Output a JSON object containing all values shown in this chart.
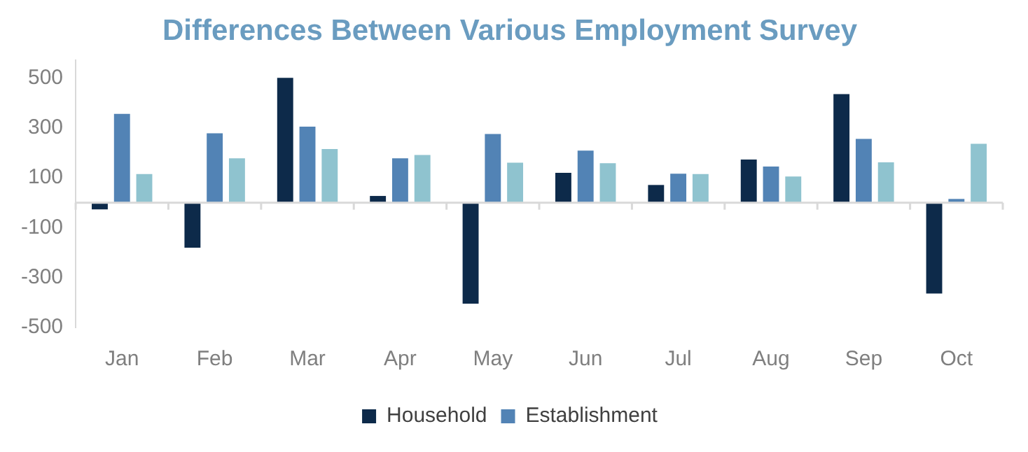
{
  "chart_data": {
    "type": "bar",
    "title": "Differences Between Various Employment Survey",
    "categories": [
      "Jan",
      "Feb",
      "Mar",
      "Apr",
      "May",
      "Jun",
      "Jul",
      "Aug",
      "Sep",
      "Oct"
    ],
    "series": [
      {
        "name": "Household",
        "color": "#0d2a4a",
        "values": [
          -27,
          -180,
          500,
          27,
          -405,
          120,
          71,
          173,
          435,
          -364
        ]
      },
      {
        "name": "Establishment",
        "color": "#5283b5",
        "values": [
          356,
          278,
          305,
          178,
          275,
          209,
          116,
          145,
          256,
          15
        ]
      },
      {
        "color": "#8fc3cf",
        "values": [
          115,
          178,
          215,
          191,
          160,
          158,
          115,
          105,
          162,
          236
        ]
      }
    ],
    "ylim": [
      -500,
      570
    ],
    "yticks": [
      -500,
      -300,
      -100,
      100,
      300,
      500
    ],
    "grid": false,
    "legend": "bottom"
  }
}
